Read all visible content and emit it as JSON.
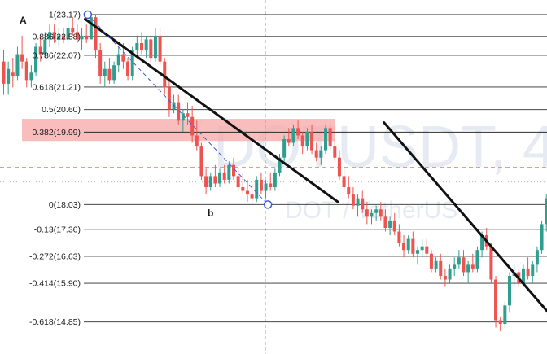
{
  "chart_data": {
    "type": "candlestick",
    "symbol_watermark": "DOTUSDT, 4",
    "pair_watermark": "DOT / TetherUS",
    "point_labels": [
      "A",
      "b"
    ],
    "fib_levels": [
      {
        "ratio": "1",
        "price": 23.17,
        "label": "1(23.17)"
      },
      {
        "ratio": "0.886",
        "price": 22.58,
        "label": "0.886(22.58)"
      },
      {
        "ratio": "0.786",
        "price": 22.07,
        "label": "0.786(22.07)"
      },
      {
        "ratio": "0.618",
        "price": 21.21,
        "label": "0.618(21.21)"
      },
      {
        "ratio": "0.5",
        "price": 20.6,
        "label": "0.5(20.60)"
      },
      {
        "ratio": "0.382",
        "price": 19.99,
        "label": "0.382(19.99)"
      },
      {
        "ratio": "0",
        "price": 18.03,
        "label": "0(18.03)"
      },
      {
        "ratio": "-0.13",
        "price": 17.36,
        "label": "-0.13(17.36)"
      },
      {
        "ratio": "-0.272",
        "price": 16.63,
        "label": "-0.272(16.63)"
      },
      {
        "ratio": "-0.414",
        "price": 15.9,
        "label": "-0.414(15.90)"
      },
      {
        "ratio": "-0.618",
        "price": 14.85,
        "label": "-0.618(14.85)"
      }
    ],
    "highlight_zone": {
      "from": 19.75,
      "to": 20.35
    },
    "dashed_price_lines": [
      19.04,
      18.64
    ],
    "trendlines": [
      {
        "from": [
          0,
          23.05
        ],
        "to": [
          55,
          18.1
        ]
      },
      {
        "from": [
          65,
          20.25
        ],
        "to": [
          103,
          14.78
        ]
      }
    ],
    "diagonal": {
      "from": [
        19,
        23.17
      ],
      "to": [
        61,
        18.03
      ]
    },
    "candles": [
      [
        21.9,
        22.2,
        21.0,
        21.3
      ],
      [
        21.3,
        21.9,
        21.0,
        21.7
      ],
      [
        21.6,
        22.0,
        21.2,
        21.5
      ],
      [
        21.5,
        22.3,
        21.4,
        22.1
      ],
      [
        22.1,
        22.6,
        21.7,
        21.9
      ],
      [
        21.9,
        22.0,
        21.2,
        21.4
      ],
      [
        21.4,
        21.8,
        21.2,
        21.6
      ],
      [
        21.6,
        22.4,
        21.5,
        22.3
      ],
      [
        22.3,
        22.6,
        21.9,
        22.1
      ],
      [
        22.1,
        22.7,
        22.0,
        22.5
      ],
      [
        22.5,
        22.9,
        22.3,
        22.7
      ],
      [
        22.7,
        22.9,
        22.4,
        22.5
      ],
      [
        22.5,
        22.8,
        22.3,
        22.6
      ],
      [
        22.6,
        22.8,
        22.4,
        22.5
      ],
      [
        22.5,
        23.0,
        22.4,
        22.8
      ],
      [
        22.8,
        23.1,
        22.6,
        22.7
      ],
      [
        22.7,
        22.9,
        22.4,
        22.5
      ],
      [
        22.5,
        22.8,
        22.2,
        22.6
      ],
      [
        22.6,
        22.9,
        22.4,
        22.5
      ],
      [
        22.5,
        23.2,
        22.5,
        23.1
      ],
      [
        23.1,
        23.17,
        22.0,
        22.2
      ],
      [
        22.2,
        22.4,
        21.3,
        21.5
      ],
      [
        21.5,
        21.9,
        21.2,
        21.7
      ],
      [
        21.7,
        22.0,
        21.3,
        21.4
      ],
      [
        21.4,
        21.9,
        21.3,
        21.8
      ],
      [
        21.8,
        22.3,
        21.6,
        22.1
      ],
      [
        22.1,
        22.4,
        21.7,
        21.9
      ],
      [
        21.9,
        22.0,
        21.4,
        21.5
      ],
      [
        21.5,
        22.3,
        21.4,
        22.2
      ],
      [
        22.2,
        22.6,
        22.0,
        22.4
      ],
      [
        22.4,
        22.7,
        22.1,
        22.2
      ],
      [
        22.2,
        22.6,
        22.0,
        22.5
      ],
      [
        22.5,
        22.6,
        21.9,
        22.0
      ],
      [
        22.0,
        22.8,
        21.9,
        22.6
      ],
      [
        22.6,
        22.8,
        21.8,
        21.9
      ],
      [
        21.9,
        22.0,
        21.0,
        21.2
      ],
      [
        21.2,
        21.4,
        20.4,
        20.6
      ],
      [
        20.6,
        21.0,
        20.5,
        20.8
      ],
      [
        20.8,
        21.0,
        20.2,
        20.3
      ],
      [
        20.3,
        20.6,
        20.0,
        20.5
      ],
      [
        20.5,
        20.8,
        20.2,
        20.4
      ],
      [
        20.4,
        20.7,
        19.7,
        19.9
      ],
      [
        19.9,
        20.3,
        19.5,
        19.6
      ],
      [
        19.6,
        19.7,
        18.7,
        18.8
      ],
      [
        18.8,
        19.0,
        18.3,
        18.5
      ],
      [
        18.5,
        18.9,
        18.4,
        18.8
      ],
      [
        18.8,
        19.1,
        18.5,
        18.6
      ],
      [
        18.6,
        19.0,
        18.5,
        18.9
      ],
      [
        18.9,
        19.1,
        18.6,
        18.7
      ],
      [
        18.7,
        19.2,
        18.6,
        19.1
      ],
      [
        19.1,
        19.3,
        18.7,
        18.8
      ],
      [
        18.8,
        19.0,
        18.4,
        18.5
      ],
      [
        18.5,
        18.9,
        18.3,
        18.4
      ],
      [
        18.4,
        18.7,
        18.1,
        18.3
      ],
      [
        18.3,
        18.6,
        18.0,
        18.2
      ],
      [
        18.2,
        18.8,
        18.1,
        18.7
      ],
      [
        18.7,
        18.9,
        18.3,
        18.4
      ],
      [
        18.4,
        18.7,
        18.2,
        18.6
      ],
      [
        18.6,
        18.9,
        18.4,
        18.5
      ],
      [
        18.5,
        19.0,
        18.4,
        18.9
      ],
      [
        18.9,
        19.4,
        18.8,
        19.3
      ],
      [
        19.3,
        19.9,
        19.2,
        19.8
      ],
      [
        19.8,
        20.1,
        19.6,
        19.7
      ],
      [
        19.7,
        20.2,
        19.6,
        20.1
      ],
      [
        20.1,
        20.3,
        19.8,
        19.9
      ],
      [
        19.9,
        20.0,
        19.4,
        19.6
      ],
      [
        19.6,
        20.1,
        19.5,
        20.0
      ],
      [
        20.0,
        20.2,
        19.4,
        19.5
      ],
      [
        19.5,
        19.7,
        19.2,
        19.3
      ],
      [
        19.3,
        19.6,
        19.1,
        19.5
      ],
      [
        19.5,
        20.2,
        19.4,
        20.1
      ],
      [
        20.1,
        20.2,
        19.5,
        19.6
      ],
      [
        19.6,
        19.8,
        19.2,
        19.3
      ],
      [
        19.3,
        19.5,
        18.7,
        18.8
      ],
      [
        18.8,
        19.0,
        18.4,
        18.5
      ],
      [
        18.5,
        18.8,
        18.2,
        18.3
      ],
      [
        18.3,
        18.5,
        17.9,
        18.0
      ],
      [
        18.0,
        18.3,
        17.7,
        18.2
      ],
      [
        18.2,
        18.4,
        17.8,
        17.9
      ],
      [
        17.9,
        18.1,
        17.5,
        17.7
      ],
      [
        17.7,
        17.9,
        17.5,
        17.8
      ],
      [
        17.8,
        18.0,
        17.6,
        17.9
      ],
      [
        17.9,
        18.1,
        17.6,
        17.7
      ],
      [
        17.7,
        17.9,
        17.3,
        17.4
      ],
      [
        17.4,
        17.7,
        17.2,
        17.6
      ],
      [
        17.6,
        17.8,
        17.2,
        17.3
      ],
      [
        17.3,
        17.5,
        16.9,
        17.0
      ],
      [
        17.0,
        17.2,
        16.6,
        16.8
      ],
      [
        16.8,
        17.2,
        16.7,
        17.1
      ],
      [
        17.1,
        17.3,
        16.6,
        16.7
      ],
      [
        16.7,
        16.9,
        16.4,
        16.8
      ],
      [
        16.8,
        17.1,
        16.6,
        16.9
      ],
      [
        16.9,
        17.1,
        16.6,
        16.7
      ],
      [
        16.7,
        16.8,
        16.2,
        16.3
      ],
      [
        16.3,
        16.6,
        16.2,
        16.5
      ],
      [
        16.5,
        16.7,
        16.0,
        16.1
      ],
      [
        16.1,
        16.3,
        15.8,
        16.0
      ],
      [
        16.0,
        16.4,
        15.9,
        16.3
      ],
      [
        16.3,
        16.6,
        16.1,
        16.4
      ],
      [
        16.4,
        16.8,
        16.3,
        16.6
      ],
      [
        16.6,
        16.8,
        16.1,
        16.2
      ],
      [
        16.2,
        16.5,
        15.9,
        16.4
      ],
      [
        16.4,
        16.7,
        16.2,
        16.3
      ],
      [
        16.3,
        16.9,
        16.2,
        16.8
      ],
      [
        16.8,
        17.3,
        16.6,
        17.2
      ],
      [
        17.2,
        17.4,
        16.8,
        16.9
      ],
      [
        16.9,
        17.0,
        15.9,
        16.0
      ],
      [
        16.0,
        16.1,
        14.7,
        14.9
      ],
      [
        14.9,
        15.0,
        14.6,
        14.8
      ],
      [
        14.8,
        15.4,
        14.7,
        15.3
      ],
      [
        15.3,
        16.2,
        15.1,
        16.1
      ],
      [
        16.1,
        16.4,
        15.8,
        16.2
      ],
      [
        16.2,
        16.3,
        15.8,
        15.9
      ],
      [
        15.9,
        16.4,
        15.8,
        16.3
      ],
      [
        16.3,
        16.6,
        16.0,
        16.1
      ],
      [
        16.1,
        16.5,
        15.9,
        16.4
      ],
      [
        16.4,
        16.9,
        16.2,
        16.8
      ],
      [
        16.8,
        17.6,
        16.7,
        17.5
      ],
      [
        17.5,
        18.3,
        17.3,
        18.2
      ],
      [
        18.2,
        18.5,
        17.9,
        18.0
      ],
      [
        18.0,
        18.6,
        17.9,
        18.5
      ],
      [
        18.5,
        18.8,
        18.2,
        18.3
      ]
    ]
  }
}
